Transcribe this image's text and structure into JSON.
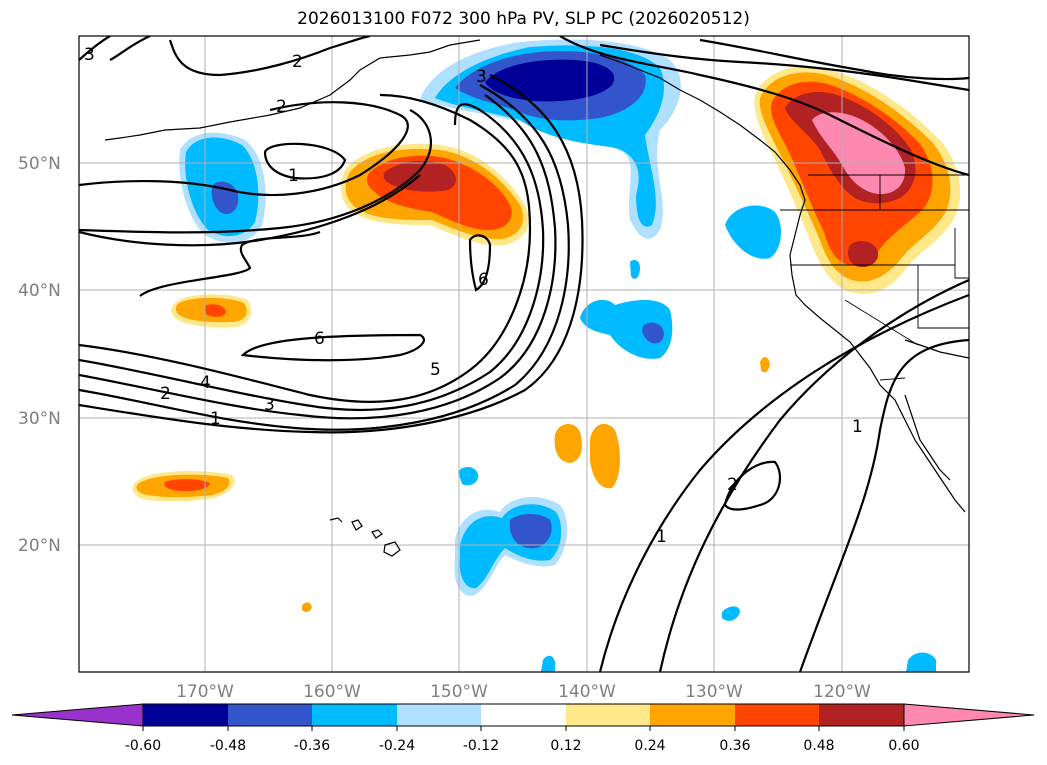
{
  "title": "2026013100 F072 300 hPa PV, SLP PC (2026020512)",
  "map": {
    "lat_labels": [
      "50°N",
      "40°N",
      "30°N",
      "20°N"
    ],
    "lon_labels": [
      "170°W",
      "160°W",
      "150°W",
      "140°W",
      "130°W",
      "120°W"
    ],
    "contour_labels": [
      "3",
      "2",
      "2",
      "1",
      "6",
      "6",
      "5",
      "4",
      "3",
      "2",
      "1",
      "3",
      "1",
      "2",
      "1"
    ]
  },
  "colorbar": {
    "levels": [
      "-0.60",
      "-0.48",
      "-0.36",
      "-0.24",
      "-0.12",
      "0.12",
      "0.24",
      "0.36",
      "0.48",
      "0.60"
    ],
    "colors": [
      "#9933cc",
      "#000099",
      "#3355cc",
      "#00bbff",
      "#b0e0ff",
      "#ffffff",
      "#ffe88a",
      "#ffa500",
      "#ff4500",
      "#b22222",
      "#ff88b0"
    ]
  },
  "chart_data": {
    "type": "contour",
    "title": "2026013100 F072 300 hPa PV, SLP PC (2026020512)",
    "fill_variable": "300 hPa PV",
    "contour_variable": "SLP PC",
    "lat_range": [
      10,
      60
    ],
    "lon_range": [
      -180,
      -110
    ],
    "fill_levels": [
      -0.6,
      -0.48,
      -0.36,
      -0.24,
      -0.12,
      0.12,
      0.24,
      0.36,
      0.48,
      0.6
    ],
    "contour_levels": [
      1,
      2,
      3,
      4,
      5,
      6
    ]
  }
}
